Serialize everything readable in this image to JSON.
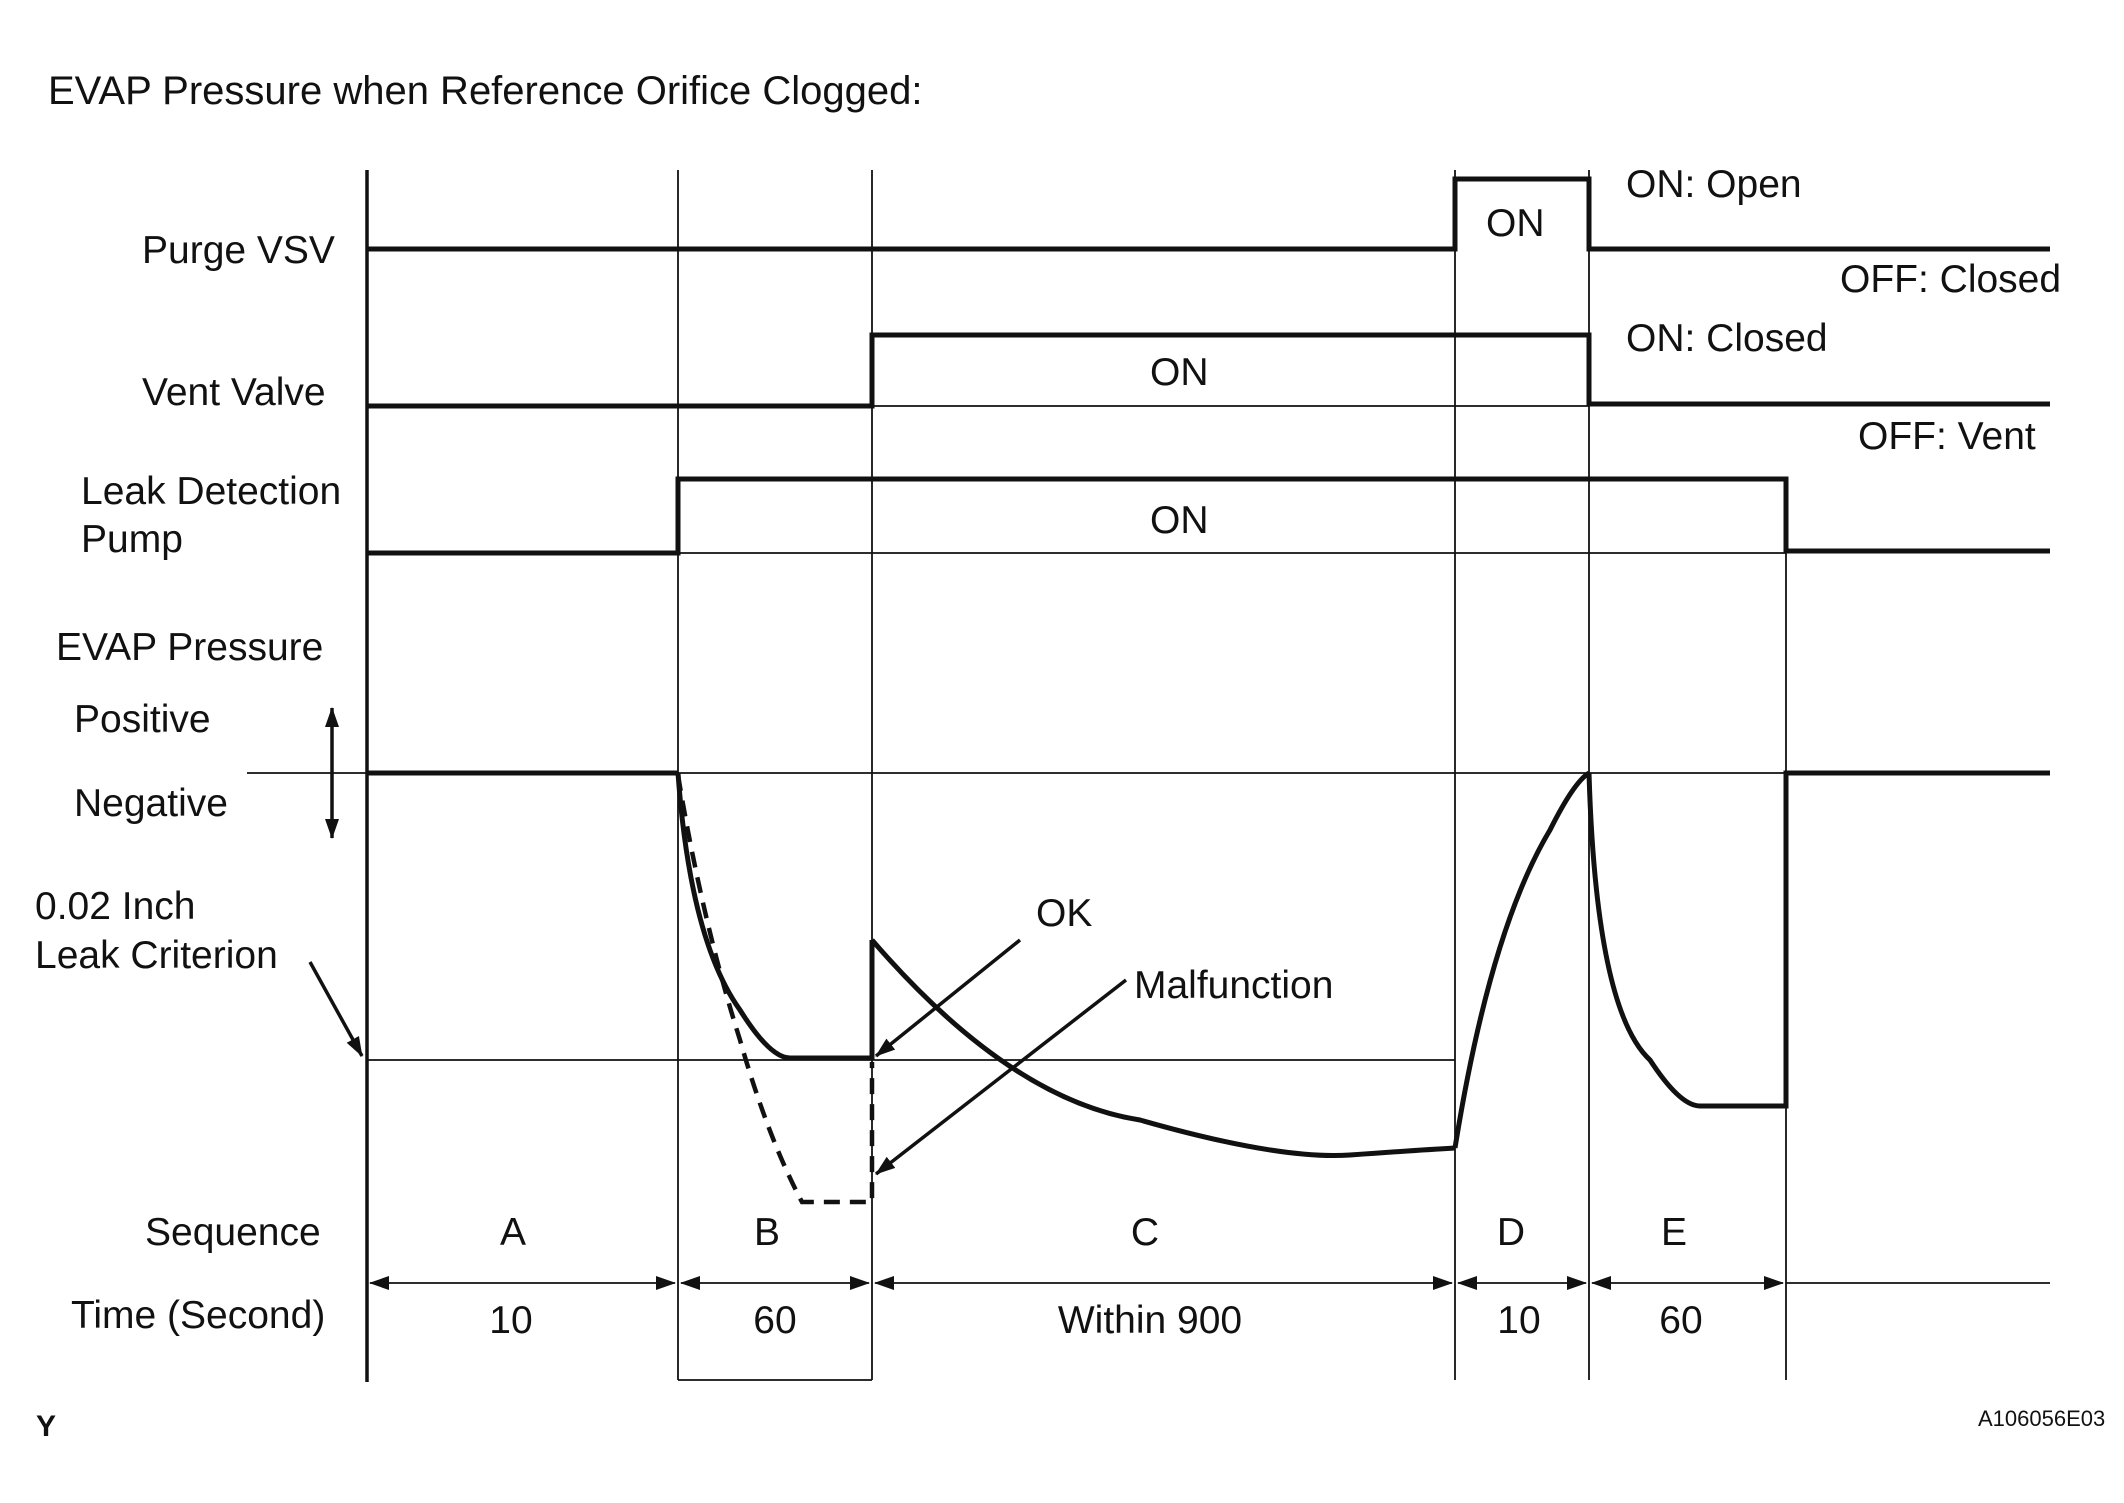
{
  "title": "EVAP Pressure when Reference Orifice Clogged:",
  "rows": {
    "purge_vsv": "Purge VSV",
    "vent_valve": "Vent Valve",
    "leak_pump_line1": "Leak Detection",
    "leak_pump_line2": "Pump",
    "evap_pressure": "EVAP Pressure",
    "positive": "Positive",
    "negative": "Negative",
    "criterion_line1": "0.02 Inch",
    "criterion_line2": "Leak Criterion",
    "sequence": "Sequence",
    "time": "Time (Second)"
  },
  "states": {
    "purge_on": "ON",
    "vent_on": "ON",
    "pump_on": "ON",
    "purge_on_note": "ON: Open",
    "purge_off_note": "OFF: Closed",
    "vent_on_note": "ON: Closed",
    "vent_off_note": "OFF: Vent"
  },
  "annotations": {
    "ok": "OK",
    "malfunction": "Malfunction"
  },
  "sequence": [
    {
      "label": "A",
      "time": "10"
    },
    {
      "label": "B",
      "time": "60"
    },
    {
      "label": "C",
      "time": "Within 900"
    },
    {
      "label": "D",
      "time": "10"
    },
    {
      "label": "E",
      "time": "60"
    }
  ],
  "footer": {
    "corner_mark": "Y",
    "figure_code": "A106056E03"
  }
}
